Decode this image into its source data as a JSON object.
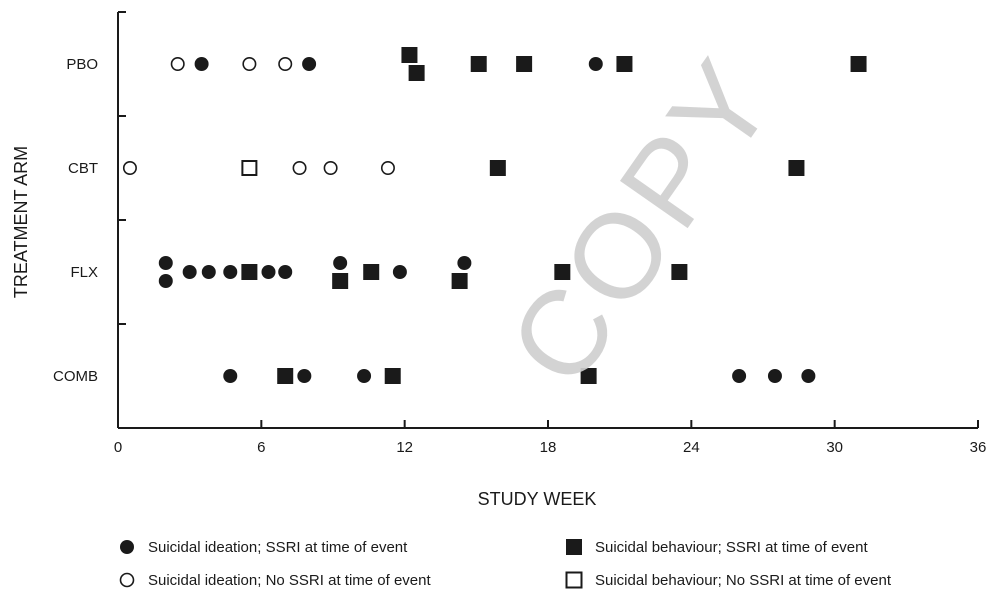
{
  "chart_data": {
    "type": "scatter",
    "xlabel": "STUDY WEEK",
    "ylabel": "TREATMENT ARM",
    "xlim": [
      0,
      36
    ],
    "xticks": [
      0,
      6,
      12,
      18,
      24,
      30,
      36
    ],
    "categories": [
      "PBO",
      "CBT",
      "FLX",
      "COMB"
    ],
    "series": [
      {
        "name": "Suicidal ideation; SSRI at time of event",
        "marker": "filled-circle",
        "points": [
          {
            "category": "PBO",
            "x": 3.5
          },
          {
            "category": "PBO",
            "x": 8.0
          },
          {
            "category": "PBO",
            "x": 20.0
          },
          {
            "category": "FLX",
            "x": 2.0,
            "offset": "upper"
          },
          {
            "category": "FLX",
            "x": 2.0,
            "offset": "lower"
          },
          {
            "category": "FLX",
            "x": 3.0
          },
          {
            "category": "FLX",
            "x": 3.8
          },
          {
            "category": "FLX",
            "x": 4.7
          },
          {
            "category": "FLX",
            "x": 6.3
          },
          {
            "category": "FLX",
            "x": 7.0
          },
          {
            "category": "FLX",
            "x": 9.3,
            "offset": "upper"
          },
          {
            "category": "FLX",
            "x": 11.8
          },
          {
            "category": "FLX",
            "x": 14.5,
            "offset": "upper"
          },
          {
            "category": "COMB",
            "x": 4.7
          },
          {
            "category": "COMB",
            "x": 7.8
          },
          {
            "category": "COMB",
            "x": 10.3
          },
          {
            "category": "COMB",
            "x": 26.0
          },
          {
            "category": "COMB",
            "x": 27.5
          },
          {
            "category": "COMB",
            "x": 28.9
          }
        ]
      },
      {
        "name": "Suicidal ideation; No SSRI at time of event",
        "marker": "open-circle",
        "points": [
          {
            "category": "PBO",
            "x": 2.5
          },
          {
            "category": "PBO",
            "x": 5.5
          },
          {
            "category": "PBO",
            "x": 7.0
          },
          {
            "category": "CBT",
            "x": 0.5
          },
          {
            "category": "CBT",
            "x": 7.6
          },
          {
            "category": "CBT",
            "x": 8.9
          },
          {
            "category": "CBT",
            "x": 11.3
          }
        ]
      },
      {
        "name": "Suicidal behaviour; SSRI at time of event",
        "marker": "filled-square",
        "points": [
          {
            "category": "PBO",
            "x": 12.2,
            "offset": "upper"
          },
          {
            "category": "PBO",
            "x": 12.5,
            "offset": "lower"
          },
          {
            "category": "PBO",
            "x": 15.1
          },
          {
            "category": "PBO",
            "x": 17.0
          },
          {
            "category": "PBO",
            "x": 21.2
          },
          {
            "category": "PBO",
            "x": 31.0
          },
          {
            "category": "CBT",
            "x": 15.9
          },
          {
            "category": "CBT",
            "x": 28.4
          },
          {
            "category": "FLX",
            "x": 5.5
          },
          {
            "category": "FLX",
            "x": 9.3,
            "offset": "lower"
          },
          {
            "category": "FLX",
            "x": 10.6
          },
          {
            "category": "FLX",
            "x": 14.3,
            "offset": "lower"
          },
          {
            "category": "FLX",
            "x": 18.6
          },
          {
            "category": "FLX",
            "x": 23.5
          },
          {
            "category": "COMB",
            "x": 7.0
          },
          {
            "category": "COMB",
            "x": 11.5
          },
          {
            "category": "COMB",
            "x": 19.7
          }
        ]
      },
      {
        "name": "Suicidal behaviour; No SSRI at time of event",
        "marker": "open-square",
        "points": [
          {
            "category": "CBT",
            "x": 5.5
          }
        ]
      }
    ],
    "legend": {
      "placement": "bottom",
      "items": [
        {
          "marker": "filled-circle",
          "label": "Suicidal ideation; SSRI at time of event"
        },
        {
          "marker": "filled-square",
          "label": "Suicidal behaviour; SSRI at time of event"
        },
        {
          "marker": "open-circle",
          "label": "Suicidal ideation; No SSRI at time of event"
        },
        {
          "marker": "open-square",
          "label": "Suicidal behaviour; No SSRI at time of event"
        }
      ]
    },
    "grid": false
  },
  "watermark": "COPY",
  "colors": {
    "ink": "#1a1a1a",
    "watermark": "#cfcfcf",
    "background": "#ffffff"
  }
}
